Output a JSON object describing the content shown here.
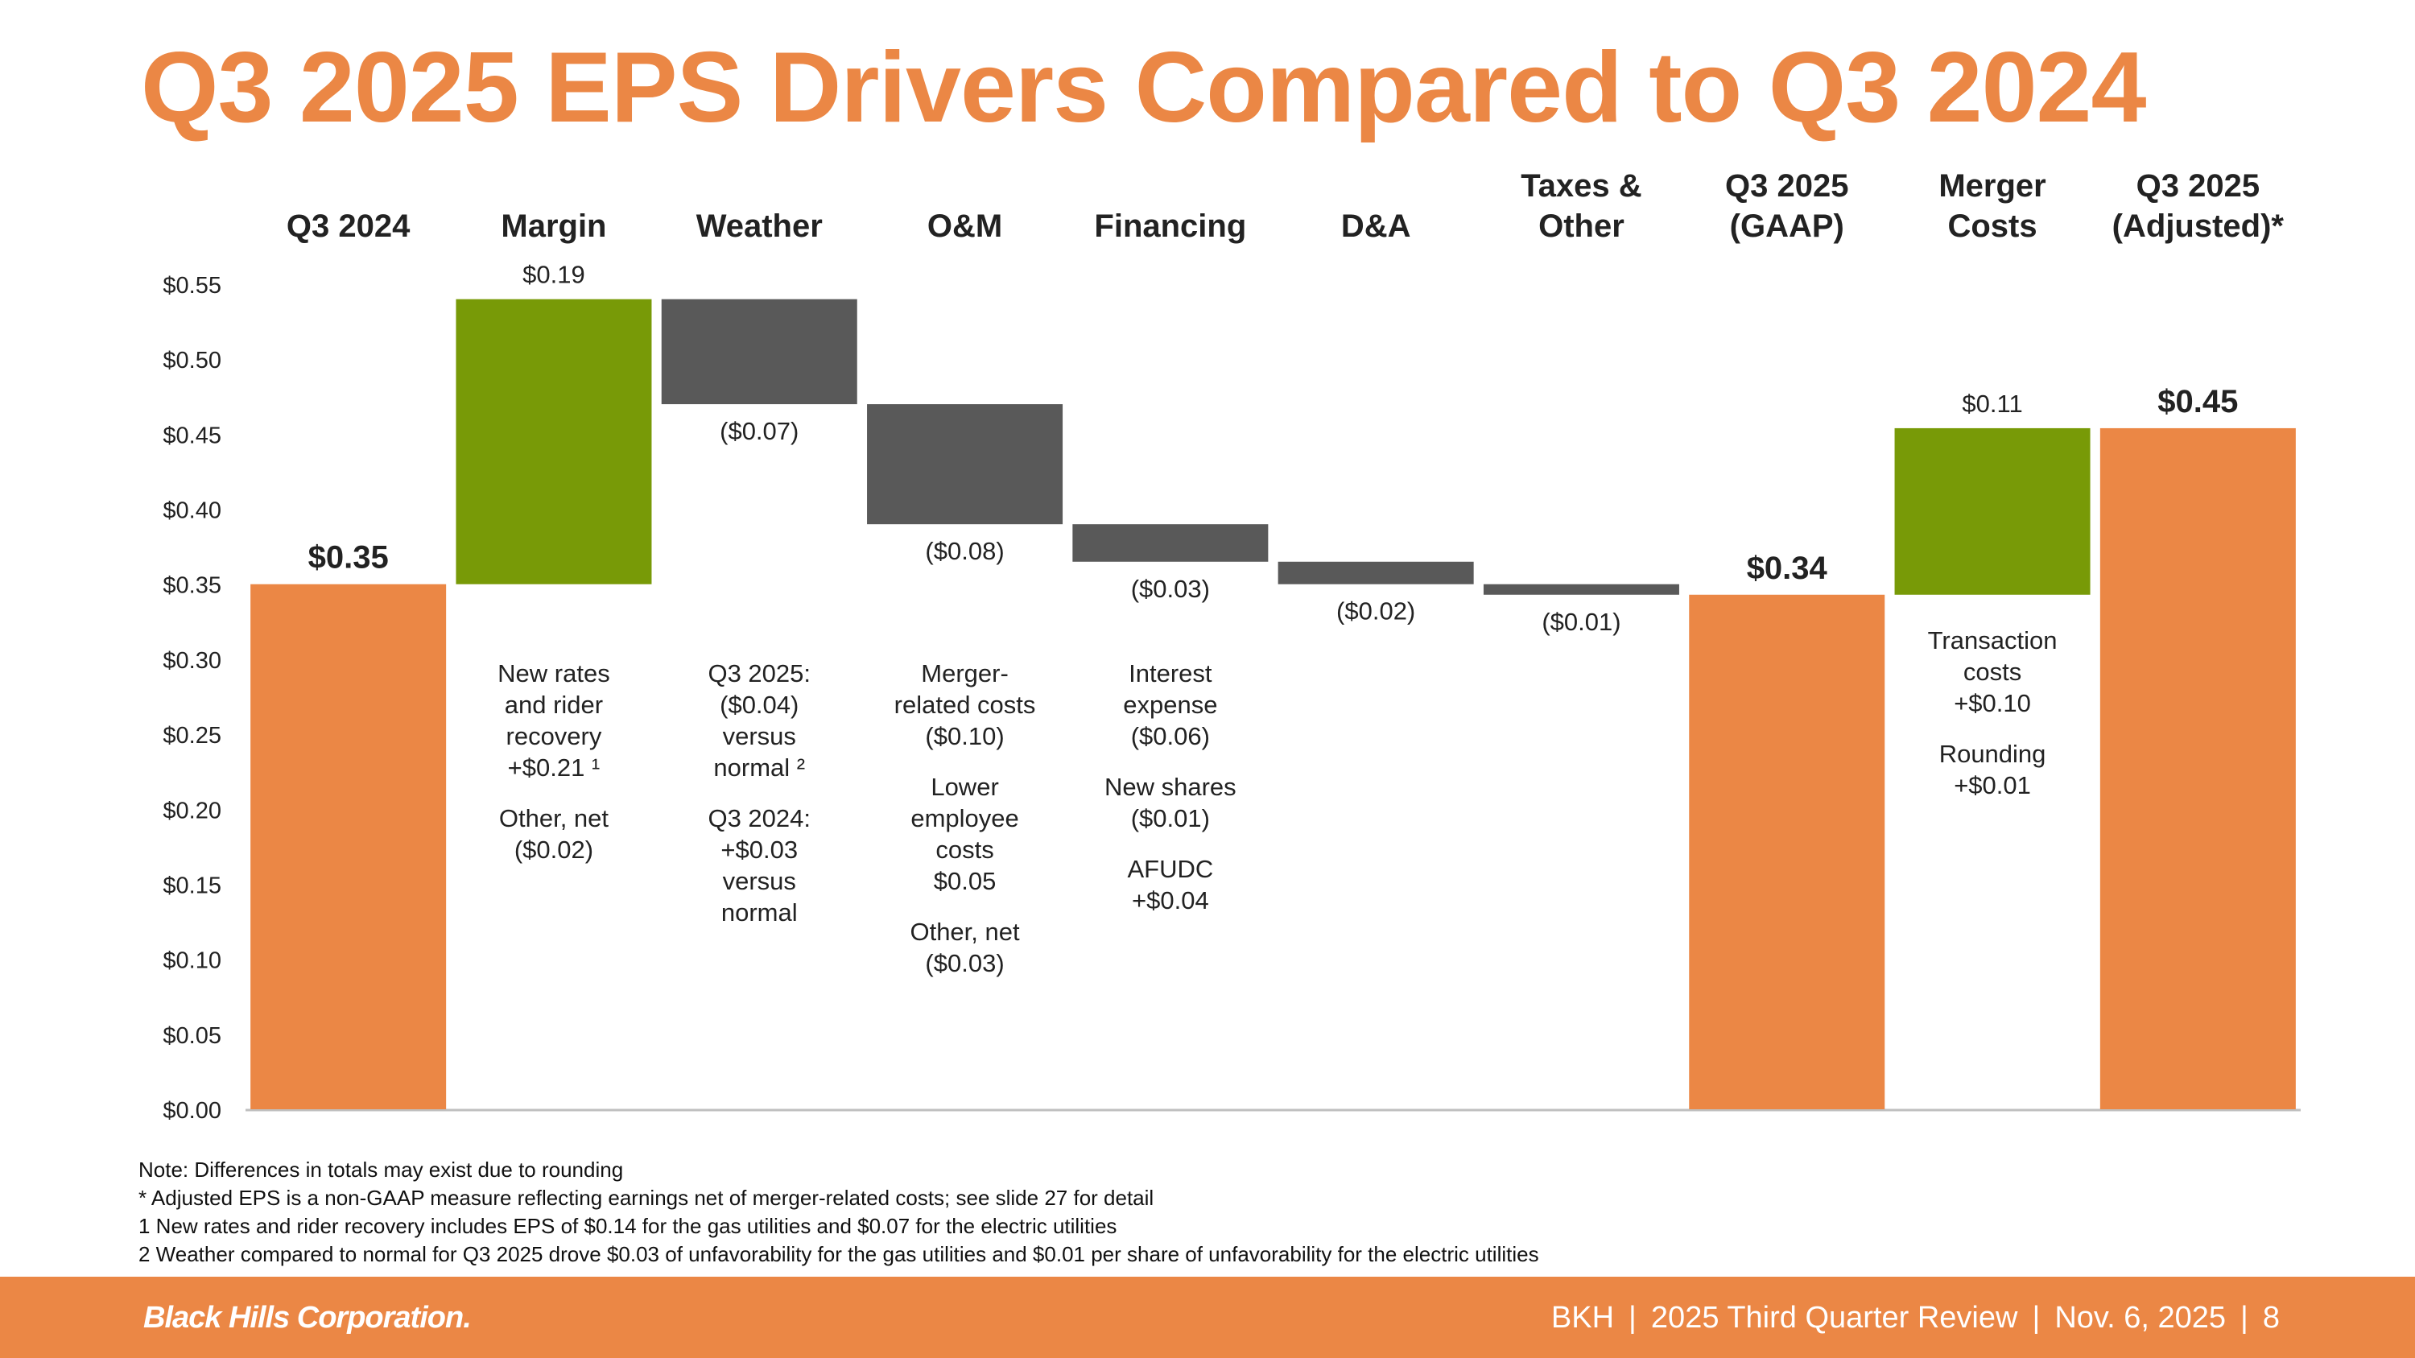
{
  "title": "Q3 2025 EPS Drivers Compared to Q3 2024",
  "chart_data": {
    "type": "waterfall",
    "title": "Q3 2025 EPS Drivers Compared to Q3 2024",
    "ylim": [
      0,
      0.55
    ],
    "y_ticks": [
      "$0.00",
      "$0.05",
      "$0.10",
      "$0.15",
      "$0.20",
      "$0.25",
      "$0.30",
      "$0.35",
      "$0.40",
      "$0.45",
      "$0.50",
      "$0.55"
    ],
    "categories": [
      {
        "name": "cat-q3-2024",
        "label": [
          "Q3 2024"
        ]
      },
      {
        "name": "cat-margin",
        "label": [
          "Margin"
        ]
      },
      {
        "name": "cat-weather",
        "label": [
          "Weather"
        ]
      },
      {
        "name": "cat-om",
        "label": [
          "O&M"
        ]
      },
      {
        "name": "cat-financing",
        "label": [
          "Financing"
        ]
      },
      {
        "name": "cat-da",
        "label": [
          "D&A"
        ]
      },
      {
        "name": "cat-taxes-other",
        "label": [
          "Taxes &",
          "Other"
        ]
      },
      {
        "name": "cat-q3-2025-gaap",
        "label": [
          "Q3 2025",
          "(GAAP)"
        ]
      },
      {
        "name": "cat-merger-costs",
        "label": [
          "Merger",
          "Costs"
        ]
      },
      {
        "name": "cat-q3-2025-adjusted",
        "label": [
          "Q3 2025",
          "(Adjusted)*"
        ]
      }
    ],
    "bars": [
      {
        "name": "bar-q3-2024",
        "kind": "total",
        "base": 0,
        "top": 0.35,
        "label": "$0.35",
        "label_pos": "above",
        "bold": true
      },
      {
        "name": "bar-margin",
        "kind": "increase",
        "base": 0.35,
        "top": 0.54,
        "label": "$0.19",
        "label_pos": "above",
        "bold": false
      },
      {
        "name": "bar-weather",
        "kind": "decrease",
        "base": 0.47,
        "top": 0.54,
        "label": "($0.07)",
        "label_pos": "below",
        "bold": false
      },
      {
        "name": "bar-om",
        "kind": "decrease",
        "base": 0.39,
        "top": 0.47,
        "label": "($0.08)",
        "label_pos": "below",
        "bold": false
      },
      {
        "name": "bar-financing",
        "kind": "decrease",
        "base": 0.365,
        "top": 0.39,
        "label": "($0.03)",
        "label_pos": "below",
        "bold": false
      },
      {
        "name": "bar-da",
        "kind": "decrease",
        "base": 0.35,
        "top": 0.365,
        "label": "($0.02)",
        "label_pos": "below",
        "bold": false
      },
      {
        "name": "bar-taxes-other",
        "kind": "decrease",
        "base": 0.343,
        "top": 0.35,
        "label": "($0.01)",
        "label_pos": "below",
        "bold": false
      },
      {
        "name": "bar-q3-2025-gaap",
        "kind": "total",
        "base": 0,
        "top": 0.343,
        "label": "$0.34",
        "label_pos": "above",
        "bold": true
      },
      {
        "name": "bar-merger-costs",
        "kind": "increase",
        "base": 0.343,
        "top": 0.454,
        "label": "$0.11",
        "label_pos": "above",
        "bold": false
      },
      {
        "name": "bar-q3-2025-adjusted",
        "kind": "total",
        "base": 0,
        "top": 0.454,
        "label": "$0.45",
        "label_pos": "above",
        "bold": true
      }
    ],
    "annotations": [
      {
        "name": "annotation-margin",
        "col": 1,
        "top_value": 0.3,
        "lines": [
          "New rates",
          "and rider",
          "recovery",
          "+$0.21 ¹",
          "",
          "Other, net",
          "($0.02)"
        ]
      },
      {
        "name": "annotation-weather",
        "col": 2,
        "top_value": 0.3,
        "lines": [
          "Q3 2025:",
          "($0.04)",
          "versus",
          "normal ²",
          "",
          "Q3 2024:",
          "+$0.03",
          "versus",
          "normal"
        ]
      },
      {
        "name": "annotation-om",
        "col": 3,
        "top_value": 0.3,
        "lines": [
          "Merger-",
          "related costs",
          "($0.10)",
          "",
          "Lower",
          "employee",
          "costs",
          "$0.05",
          "",
          "Other, net",
          "($0.03)"
        ]
      },
      {
        "name": "annotation-financing",
        "col": 4,
        "top_value": 0.3,
        "lines": [
          "Interest",
          "expense",
          "($0.06)",
          "",
          "New shares",
          "($0.01)",
          "",
          "AFUDC",
          "+$0.04"
        ]
      },
      {
        "name": "annotation-merger-costs",
        "col": 8,
        "top_value": 0.322,
        "lines": [
          "Transaction",
          "costs",
          "+$0.10",
          "",
          "Rounding",
          "+$0.01"
        ]
      }
    ],
    "colors": {
      "total": "#EB8745",
      "increase": "#789A07",
      "decrease": "#595959"
    }
  },
  "notes": [
    "Note: Differences in totals may exist due to rounding",
    "*  Adjusted EPS is a non-GAAP measure reflecting earnings net of merger-related costs; see slide 27 for detail",
    "1  New rates and rider recovery includes EPS of $0.14 for the gas utilities and $0.07 for the electric utilities",
    "2  Weather compared to normal for Q3 2025 drove $0.03 of unfavorability for the gas utilities and $0.01 per share of unfavorability for the electric utilities"
  ],
  "footer": {
    "logo": "Black Hills Corporation.",
    "ticker": "BKH",
    "event": "2025 Third Quarter Review",
    "date": "Nov. 6, 2025",
    "page": "8",
    "separator": "|"
  }
}
